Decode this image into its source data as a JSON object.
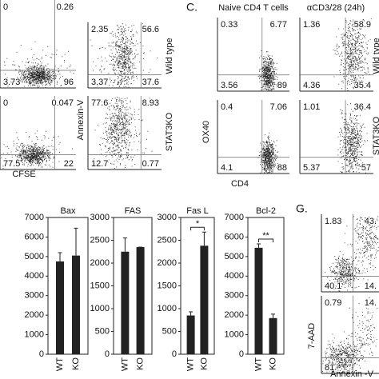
{
  "panel_b": {
    "x_label": "CFSE",
    "y_label": "Annexin-V",
    "row_labels": [
      "Wild type",
      "STAT3KO"
    ],
    "plots": [
      {
        "quadrants": [
          "0",
          "0.26",
          "3.73",
          "96"
        ]
      },
      {
        "quadrants": [
          "2.35",
          "56.6",
          "3.37",
          "37.6"
        ]
      },
      {
        "quadrants": [
          "0",
          "0.047",
          "77.5",
          "22"
        ]
      },
      {
        "quadrants": [
          "77.6",
          "8.93",
          "12.7",
          "0.77"
        ]
      }
    ]
  },
  "panel_c": {
    "label": "C.",
    "column_titles": [
      "Naive CD4 T cells",
      "αCD3/28 (24h)"
    ],
    "x_label": "CD4",
    "y_label": "OX40",
    "row_labels": [
      "Wild type",
      "STAT3KO"
    ],
    "plots": [
      {
        "quadrants": [
          "0.33",
          "6.77",
          "3.56",
          "89"
        ]
      },
      {
        "quadrants": [
          "1.36",
          "58.9",
          "4.36",
          "35.4"
        ]
      },
      {
        "quadrants": [
          "0.4",
          "7.06",
          "4.1",
          "88"
        ]
      },
      {
        "quadrants": [
          "1.01",
          "36.4",
          "5.37",
          "57"
        ]
      }
    ]
  },
  "panel_g": {
    "label": "G.",
    "x_label": "Annexin -V",
    "y_label": "7-AAD",
    "plots": [
      {
        "quadrants": [
          "1.83",
          "43.",
          "40.1",
          "14."
        ]
      },
      {
        "quadrants": [
          "0.79",
          "14.",
          "81.",
          ""
        ]
      }
    ]
  },
  "chart_data": [
    {
      "type": "bar",
      "title": "Bax",
      "categories": [
        "WT",
        "KO"
      ],
      "values": [
        4750,
        5050
      ],
      "errors": [
        450,
        1400
      ],
      "color": "#222222",
      "ylim": [
        0,
        7000
      ],
      "yticks": [
        0,
        1000,
        2000,
        3000,
        4000,
        5000,
        6000,
        7000
      ]
    },
    {
      "type": "bar",
      "title": "FAS",
      "categories": [
        "WT",
        "KO"
      ],
      "values": [
        2250,
        2350
      ],
      "errors": [
        300,
        0
      ],
      "color": "#222222",
      "ylim": [
        0,
        3000
      ],
      "yticks": [
        0,
        500,
        1000,
        1500,
        2000,
        2500,
        3000
      ]
    },
    {
      "type": "bar",
      "title": "Fas L",
      "categories": [
        "WT",
        "KO"
      ],
      "values": [
        850,
        2380
      ],
      "errors": [
        80,
        300
      ],
      "color": "#222222",
      "ylim": [
        0,
        3000
      ],
      "yticks": [
        0,
        500,
        1000,
        1500,
        2000,
        2500,
        3000
      ],
      "annotation": "*"
    },
    {
      "type": "bar",
      "title": "Bcl-2",
      "categories": [
        "WT",
        "KO"
      ],
      "values": [
        5450,
        1850
      ],
      "errors": [
        200,
        200
      ],
      "color": "#222222",
      "ylim": [
        0,
        7000
      ],
      "yticks": [
        0,
        1000,
        2000,
        3000,
        4000,
        5000,
        6000,
        7000
      ],
      "annotation": "**"
    }
  ]
}
